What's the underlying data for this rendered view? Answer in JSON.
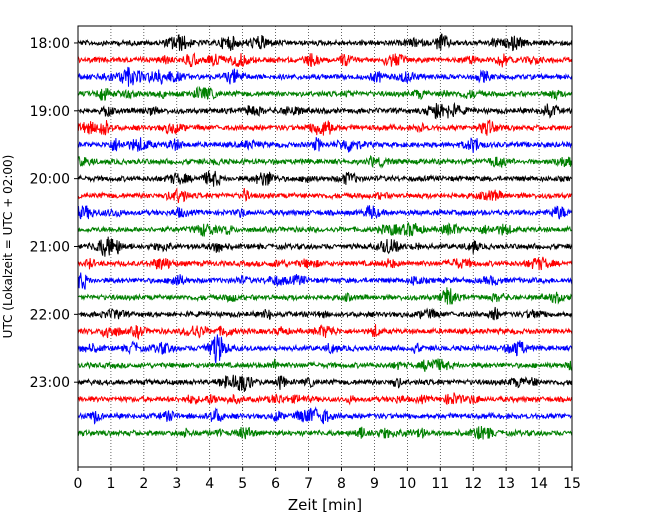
{
  "chart_data": {
    "type": "line",
    "title": "",
    "xlabel": "Zeit  [min]",
    "ylabel": "UTC (Lokalzeit = UTC + 02:00)",
    "xlim": [
      0,
      15
    ],
    "xticks": [
      0,
      1,
      2,
      3,
      4,
      5,
      6,
      7,
      8,
      9,
      10,
      11,
      12,
      13,
      14,
      15
    ],
    "ylim": [
      "17:45",
      "24:15"
    ],
    "ytick_labels": [
      "18:00",
      "19:00",
      "20:00",
      "21:00",
      "22:00",
      "23:00"
    ],
    "grid": "vertical dotted at each minute",
    "trace_interval_minutes": 15,
    "trace_start_times": [
      "18:00",
      "18:15",
      "18:30",
      "18:45",
      "19:00",
      "19:15",
      "19:30",
      "19:45",
      "20:00",
      "20:15",
      "20:30",
      "20:45",
      "21:00",
      "21:15",
      "21:30",
      "21:45",
      "22:00",
      "22:15",
      "22:30",
      "22:45",
      "23:00",
      "23:15",
      "23:30",
      "23:45"
    ],
    "series_colors": [
      "#000000",
      "#ff0000",
      "#0000ff",
      "#008000"
    ]
  }
}
